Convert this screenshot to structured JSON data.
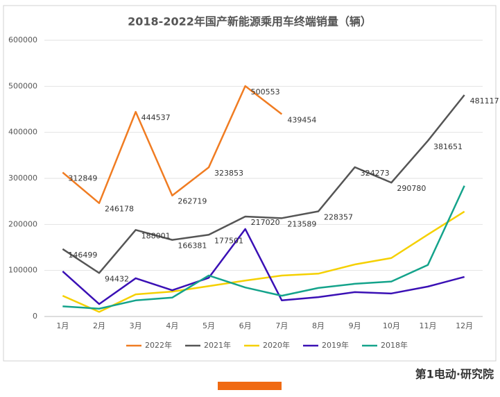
{
  "chart_data": {
    "type": "line",
    "title": "2018-2022年国产新能源乘用车终端销量（辆）",
    "categories": [
      "1月",
      "2月",
      "3月",
      "4月",
      "5月",
      "6月",
      "7月",
      "8月",
      "9月",
      "10月",
      "11月",
      "12月"
    ],
    "ylim": [
      0,
      600000
    ],
    "yticks": [
      0,
      100000,
      200000,
      300000,
      400000,
      500000,
      600000
    ],
    "grid": true,
    "legend": "bottom",
    "series": [
      {
        "name": "2022年",
        "color": "#f07c22",
        "data_labels": true,
        "values": [
          312849,
          246178,
          444537,
          262719,
          323853,
          500553,
          439454,
          null,
          null,
          null,
          null,
          null
        ]
      },
      {
        "name": "2021年",
        "color": "#555555",
        "data_labels": true,
        "values": [
          146499,
          94432,
          188001,
          166381,
          177501,
          217020,
          213589,
          228357,
          324273,
          290780,
          381651,
          481117
        ]
      },
      {
        "name": "2020年",
        "color": "#f5d000",
        "data_labels": false,
        "values": [
          45000,
          10000,
          48000,
          54000,
          66000,
          78000,
          89000,
          93000,
          113000,
          127000,
          178000,
          228000
        ]
      },
      {
        "name": "2019年",
        "color": "#3a10b5",
        "data_labels": false,
        "values": [
          98000,
          27000,
          83000,
          57000,
          84000,
          190000,
          35000,
          42000,
          53000,
          50000,
          65000,
          86000
        ]
      },
      {
        "name": "2018年",
        "color": "#14a38b",
        "data_labels": false,
        "values": [
          22000,
          17000,
          35000,
          41000,
          89000,
          63000,
          45000,
          62000,
          71000,
          76000,
          112000,
          284000
        ]
      }
    ]
  },
  "brand": "第1电动·研究院"
}
